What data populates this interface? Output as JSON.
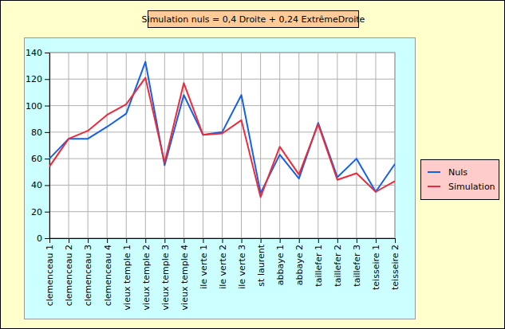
{
  "chart_data": {
    "type": "line",
    "title": "Simulation nuls = 0,4 Droite + 0,24 ExtrêmeDroite",
    "categories": [
      "clemenceau 1",
      "clemenceau 2",
      "clemenceau 3",
      "clemenceau 4",
      "vieux temple 1",
      "vieux temple 2",
      "vieux temple 3",
      "vieux temple 4",
      "ile verte 1",
      "ile verte 2",
      "ile verte 3",
      "st laurent",
      "abbaye 1",
      "abbaye 2",
      "taillefer 1",
      "taillefer 2",
      "taillefer 3",
      "teisseire 1",
      "teisseire 2"
    ],
    "series": [
      {
        "name": "Nuls",
        "color": "#1560e8",
        "values": [
          60,
          75,
          75,
          84,
          94,
          133,
          55,
          108,
          78,
          80,
          108,
          34,
          63,
          45,
          87,
          46,
          60,
          35,
          56
        ]
      },
      {
        "name": "Simulation",
        "color": "#ee2a3a",
        "values": [
          54,
          75,
          81,
          93,
          101,
          121,
          57,
          117,
          78,
          79,
          89,
          31,
          69,
          48,
          86,
          44,
          49,
          35,
          43
        ]
      }
    ],
    "ylim": [
      0,
      140
    ],
    "yticks": [
      0,
      20,
      40,
      60,
      80,
      100,
      120,
      140
    ],
    "grid": true,
    "legend": "right"
  }
}
